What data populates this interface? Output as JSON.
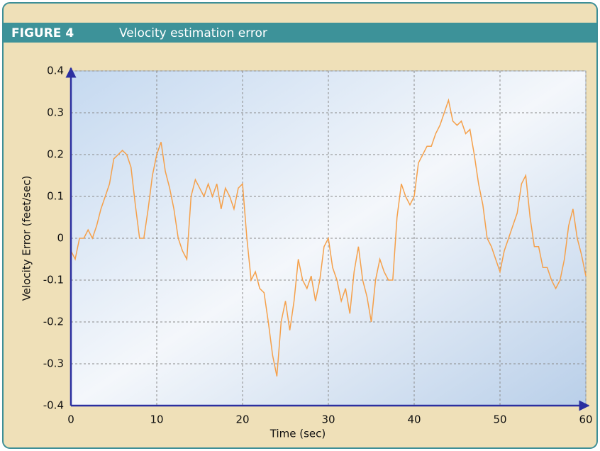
{
  "figure_label": "FIGURE 4",
  "chart_data": {
    "type": "line",
    "title": "Velocity estimation error",
    "x_label": "Time (sec)",
    "y_label": "Velocity Error (feet/sec)",
    "color": "#f5a04a",
    "x": [
      0,
      0.5,
      1,
      1.5,
      2,
      2.5,
      3,
      3.5,
      4,
      4.5,
      5,
      5.5,
      6,
      6.5,
      7,
      7.5,
      8,
      8.5,
      9,
      9.5,
      10,
      10.5,
      11,
      11.5,
      12,
      12.5,
      13,
      13.5,
      14,
      14.5,
      15,
      15.5,
      16,
      16.5,
      17,
      17.5,
      18,
      18.5,
      19,
      19.5,
      20,
      20.5,
      21,
      21.5,
      22,
      22.5,
      23,
      23.5,
      24,
      24.5,
      25,
      25.5,
      26,
      26.5,
      27,
      27.5,
      28,
      28.5,
      29,
      29.5,
      30,
      30.5,
      31,
      31.5,
      32,
      32.5,
      33,
      33.5,
      34,
      34.5,
      35,
      35.5,
      36,
      36.5,
      37,
      37.5,
      38,
      38.5,
      39,
      39.5,
      40,
      40.5,
      41,
      41.5,
      42,
      42.5,
      43,
      43.5,
      44,
      44.5,
      45,
      45.5,
      46,
      46.5,
      47,
      47.5,
      48,
      48.5,
      49,
      49.5,
      50,
      50.5,
      51,
      51.5,
      52,
      52.5,
      53,
      53.5,
      54,
      54.5,
      55,
      55.5,
      56,
      56.5,
      57,
      57.5,
      58,
      58.5,
      59,
      59.5,
      60
    ],
    "values": [
      -0.03,
      -0.05,
      0.0,
      0.0,
      0.02,
      0.0,
      0.03,
      0.07,
      0.1,
      0.13,
      0.19,
      0.2,
      0.21,
      0.2,
      0.17,
      0.08,
      0.0,
      0.0,
      0.07,
      0.15,
      0.2,
      0.23,
      0.16,
      0.12,
      0.07,
      0.0,
      -0.03,
      -0.05,
      0.1,
      0.14,
      0.12,
      0.1,
      0.13,
      0.1,
      0.13,
      0.07,
      0.12,
      0.1,
      0.07,
      0.12,
      0.13,
      0.0,
      -0.1,
      -0.08,
      -0.12,
      -0.13,
      -0.2,
      -0.28,
      -0.33,
      -0.2,
      -0.15,
      -0.22,
      -0.15,
      -0.05,
      -0.1,
      -0.12,
      -0.09,
      -0.15,
      -0.1,
      -0.02,
      0.0,
      -0.07,
      -0.1,
      -0.15,
      -0.12,
      -0.18,
      -0.08,
      -0.02,
      -0.1,
      -0.14,
      -0.2,
      -0.1,
      -0.05,
      -0.08,
      -0.1,
      -0.1,
      0.05,
      0.13,
      0.1,
      0.08,
      0.1,
      0.18,
      0.2,
      0.22,
      0.22,
      0.25,
      0.27,
      0.3,
      0.33,
      0.28,
      0.27,
      0.28,
      0.25,
      0.26,
      0.2,
      0.13,
      0.08,
      0.0,
      -0.02,
      -0.05,
      -0.08,
      -0.03,
      0.0,
      0.03,
      0.06,
      0.13,
      0.15,
      0.05,
      -0.02,
      -0.02,
      -0.07,
      -0.07,
      -0.1,
      -0.12,
      -0.1,
      -0.05,
      0.03,
      0.07,
      0.0,
      -0.04,
      -0.09
    ],
    "xlim": [
      0,
      60
    ],
    "xticks": [
      0,
      10,
      20,
      30,
      40,
      50,
      60
    ],
    "ylim": [
      -0.4,
      0.4
    ],
    "yticks": [
      -0.4,
      -0.3,
      -0.2,
      -0.1,
      0,
      0.1,
      0.2,
      0.3,
      0.4
    ],
    "grid": true
  }
}
